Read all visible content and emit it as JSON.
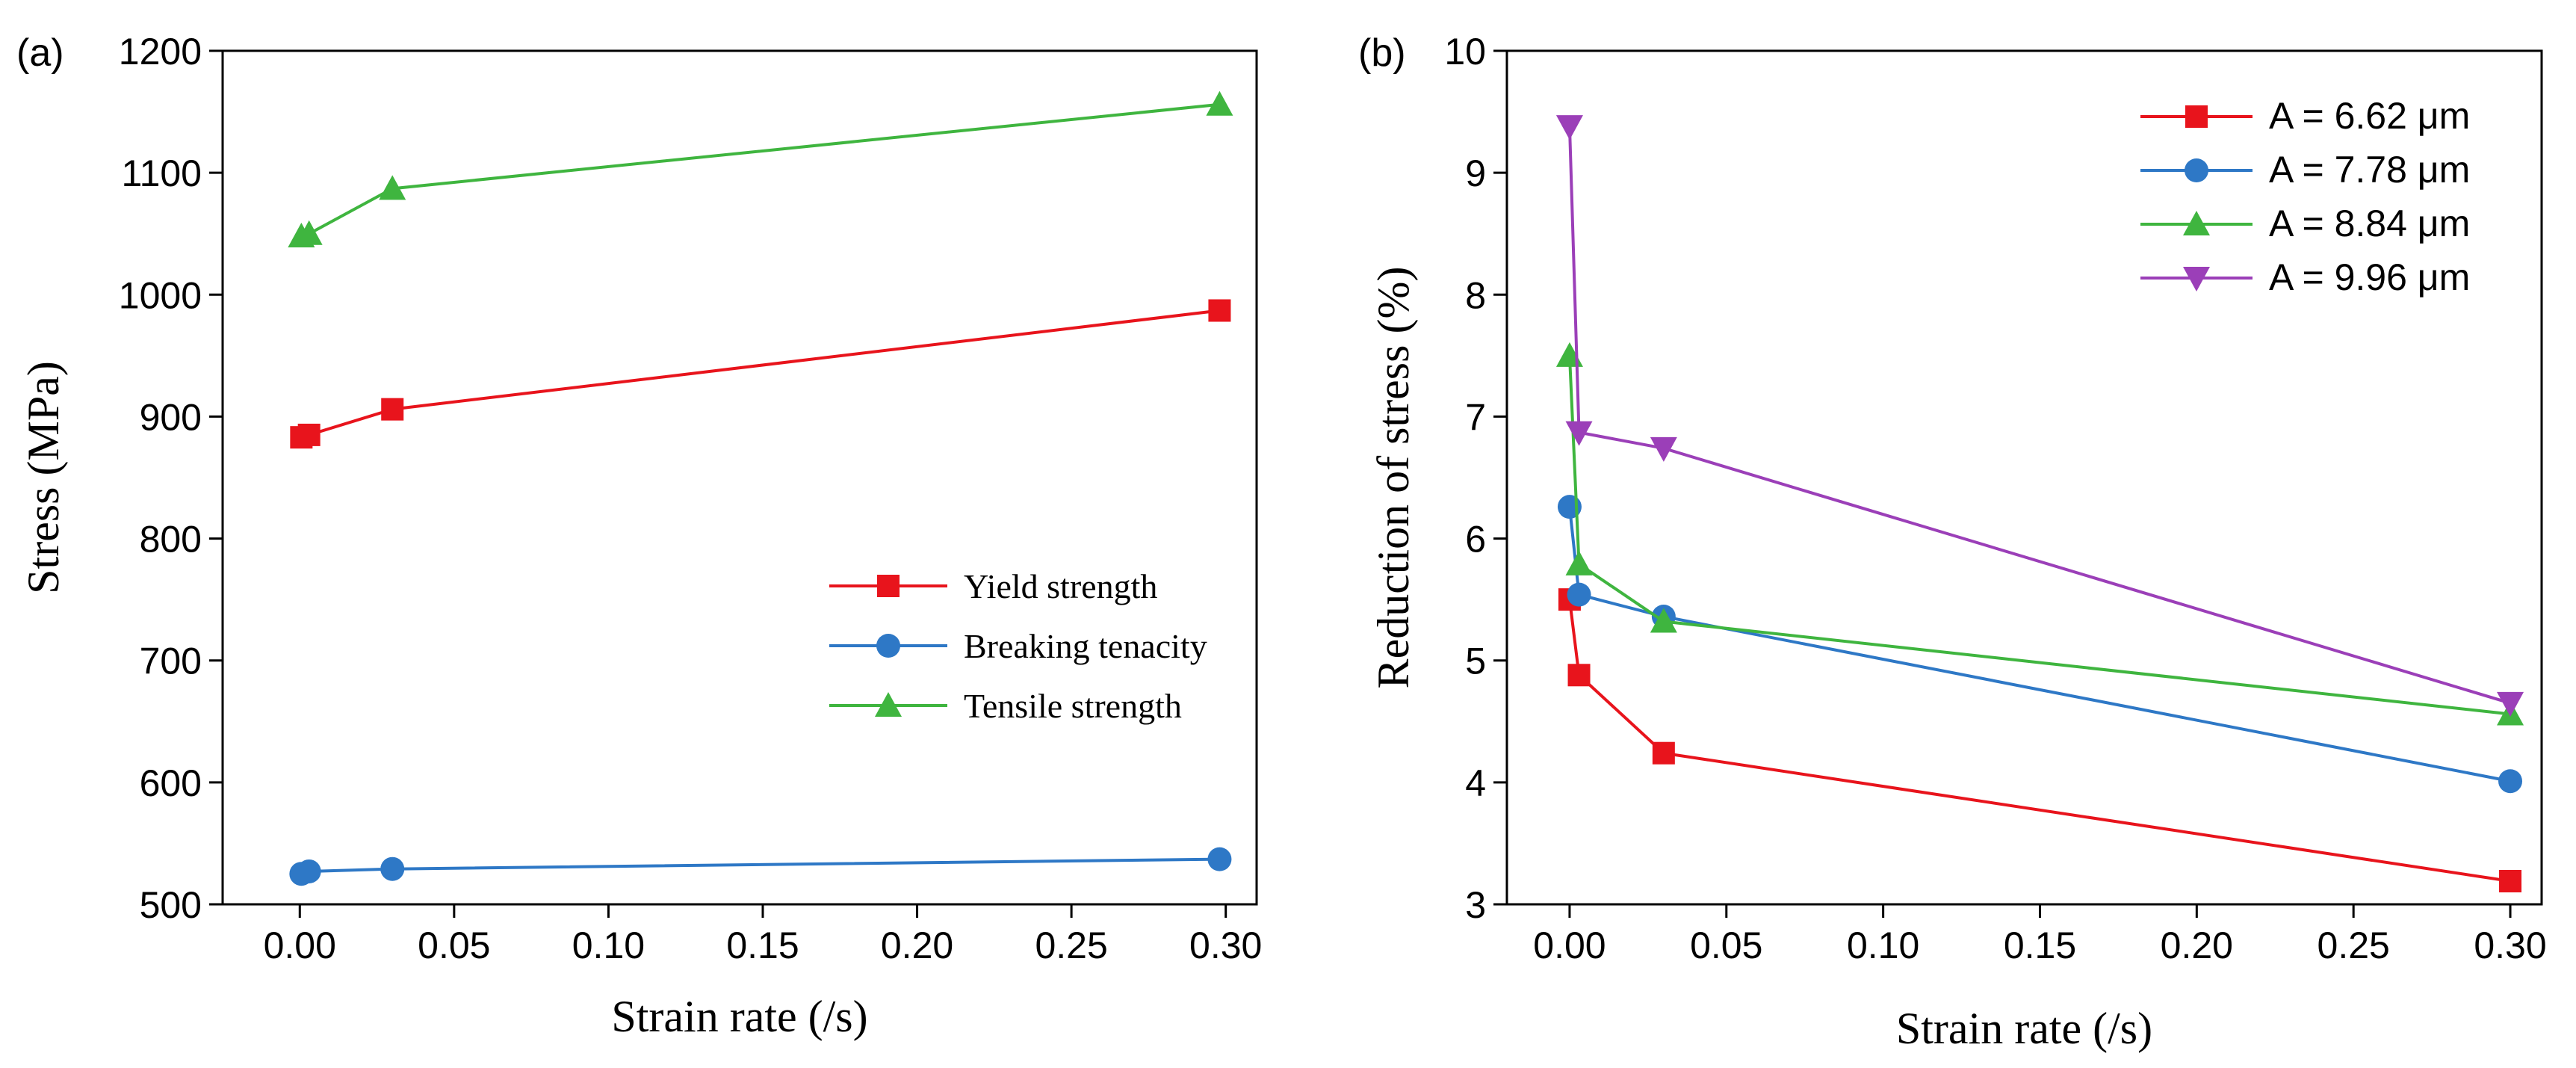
{
  "colors": {
    "red": "#e8141c",
    "blue": "#2e78c6",
    "green": "#3fb53f",
    "purple": "#9b3fb8"
  },
  "chart_data": [
    {
      "type": "line",
      "panel_label": "(a)",
      "xlabel": "Strain rate (/s)",
      "ylabel": "Stress (MPa)",
      "xlim": [
        -0.025,
        0.31
      ],
      "ylim": [
        500,
        1200
      ],
      "xticks": [
        "0.00",
        "0.05",
        "0.10",
        "0.15",
        "0.20",
        "0.25",
        "0.30"
      ],
      "yticks": [
        "500",
        "600",
        "700",
        "800",
        "900",
        "1000",
        "1100",
        "1200"
      ],
      "legend": "center-right",
      "series": [
        {
          "name": "Yield strength",
          "color": "red",
          "marker": "square",
          "x": [
            0.0005,
            0.003,
            0.03,
            0.298
          ],
          "y": [
            883,
            885,
            906,
            987
          ]
        },
        {
          "name": "Breaking tenacity",
          "color": "blue",
          "marker": "circle",
          "x": [
            0.0005,
            0.003,
            0.03,
            0.298
          ],
          "y": [
            525,
            527,
            529,
            537
          ]
        },
        {
          "name": "Tensile strength",
          "color": "green",
          "marker": "triangle-up",
          "x": [
            0.0005,
            0.003,
            0.03,
            0.298
          ],
          "y": [
            1048,
            1050,
            1087,
            1156
          ]
        }
      ]
    },
    {
      "type": "line",
      "panel_label": "(b)",
      "xlabel": "Strain rate (/s)",
      "ylabel": "Reduction of stress (%)",
      "xlim": [
        -0.02,
        0.31
      ],
      "ylim": [
        3,
        10
      ],
      "xticks": [
        "0.00",
        "0.05",
        "0.10",
        "0.15",
        "0.20",
        "0.25",
        "0.30"
      ],
      "yticks": [
        "3",
        "4",
        "5",
        "6",
        "7",
        "8",
        "9",
        "10"
      ],
      "legend": "top-right",
      "series": [
        {
          "name": "A = 6.62 μm",
          "color": "red",
          "marker": "square",
          "x": [
            0.0,
            0.003,
            0.03,
            0.3
          ],
          "y": [
            5.5,
            4.88,
            4.24,
            3.19
          ]
        },
        {
          "name": "A = 7.78 μm",
          "color": "blue",
          "marker": "circle",
          "x": [
            0.0,
            0.003,
            0.03,
            0.3
          ],
          "y": [
            6.26,
            5.54,
            5.36,
            4.01
          ]
        },
        {
          "name": "A = 8.84 μm",
          "color": "green",
          "marker": "triangle-up",
          "x": [
            0.0,
            0.003,
            0.03,
            0.3
          ],
          "y": [
            7.5,
            5.79,
            5.32,
            4.56
          ]
        },
        {
          "name": "A = 9.96 μm",
          "color": "purple",
          "marker": "triangle-down",
          "x": [
            0.0,
            0.003,
            0.03,
            0.3
          ],
          "y": [
            9.38,
            6.87,
            6.74,
            4.65
          ]
        }
      ]
    }
  ]
}
